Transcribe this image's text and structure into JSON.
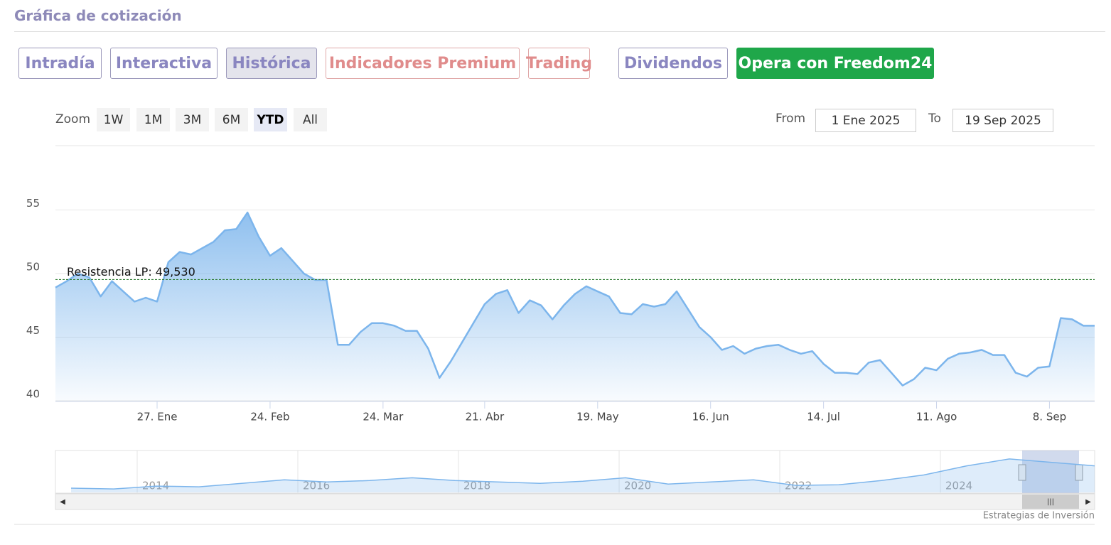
{
  "header": {
    "title": "Gráfica de cotización"
  },
  "tabs": [
    "Intradía",
    "Interactiva",
    "Histórica",
    "Indicadores Premium",
    "Trading",
    "Dividendos",
    "Opera con Freedom24"
  ],
  "zoom": {
    "label": "Zoom",
    "buttons": [
      "1W",
      "1M",
      "3M",
      "6M",
      "YTD",
      "All"
    ],
    "active": "YTD"
  },
  "range": {
    "from_label": "From",
    "from": "1 Ene 2025",
    "to_label": "To",
    "to": "19 Sep 2025"
  },
  "credits": "Estrategias de Inversión",
  "chart_data": {
    "type": "area",
    "color": "#7cb5ec",
    "categories": [
      null,
      null,
      null,
      null,
      null,
      null,
      null,
      null,
      null,
      "27. Ene",
      null,
      null,
      null,
      null,
      null,
      null,
      null,
      null,
      null,
      "24. Feb",
      null,
      null,
      null,
      null,
      null,
      null,
      null,
      null,
      null,
      "24. Mar",
      null,
      null,
      null,
      null,
      null,
      null,
      null,
      null,
      "21. Abr",
      null,
      null,
      null,
      null,
      null,
      null,
      null,
      null,
      null,
      "19. May",
      null,
      null,
      null,
      null,
      null,
      null,
      null,
      null,
      null,
      "16. Jun",
      null,
      null,
      null,
      null,
      null,
      null,
      null,
      null,
      null,
      "14. Jul",
      null,
      null,
      null,
      null,
      null,
      null,
      null,
      null,
      null,
      "11. Ago",
      null,
      null,
      null,
      null,
      null,
      null,
      null,
      null,
      null,
      "8. Sep",
      null,
      null,
      null,
      null
    ],
    "values": [
      48.9,
      49.4,
      50.0,
      49.7,
      48.2,
      49.4,
      48.6,
      47.8,
      48.1,
      47.8,
      50.9,
      51.7,
      51.5,
      52.0,
      52.5,
      53.4,
      53.5,
      54.8,
      52.9,
      51.4,
      52.0,
      51.0,
      50.0,
      49.5,
      49.5,
      44.4,
      44.4,
      45.4,
      46.1,
      46.1,
      45.9,
      45.5,
      45.5,
      44.1,
      41.8,
      43.1,
      44.6,
      46.1,
      47.6,
      48.4,
      48.7,
      46.9,
      47.9,
      47.5,
      46.4,
      47.5,
      48.4,
      49.0,
      48.6,
      48.2,
      46.9,
      46.8,
      47.6,
      47.4,
      47.6,
      48.6,
      47.2,
      45.8,
      45.0,
      44.0,
      44.3,
      43.7,
      44.1,
      44.3,
      44.4,
      44.0,
      43.7,
      43.9,
      42.9,
      42.2,
      42.2,
      42.1,
      43.0,
      43.2,
      42.2,
      41.2,
      41.7,
      42.6,
      42.4,
      43.3,
      43.7,
      43.8,
      44.0,
      43.6,
      43.6,
      42.2,
      41.9,
      42.6,
      42.7,
      46.5,
      46.4,
      45.9,
      45.9
    ],
    "ylim": [
      40,
      60
    ],
    "yticks": [
      40,
      45,
      50,
      55
    ],
    "grid": true,
    "resistance": {
      "value": 49.53,
      "label": "Resistencia LP: 49,530",
      "color": "#2e7d32"
    }
  },
  "navigator": {
    "x_labels": [
      "2014",
      "2016",
      "2018",
      "2020",
      "2022",
      "2024"
    ],
    "values": [
      19.7,
      18.9,
      22.0,
      21.2,
      25.1,
      29.0,
      26.6,
      28.2,
      31.3,
      28.2,
      26.6,
      25.1,
      27.4,
      31.3,
      24.3,
      26.6,
      29.0,
      22.8,
      23.5,
      28.2,
      34.4,
      44.5,
      52.2,
      48.4,
      44.5
    ],
    "ylim": [
      15,
      60
    ]
  }
}
